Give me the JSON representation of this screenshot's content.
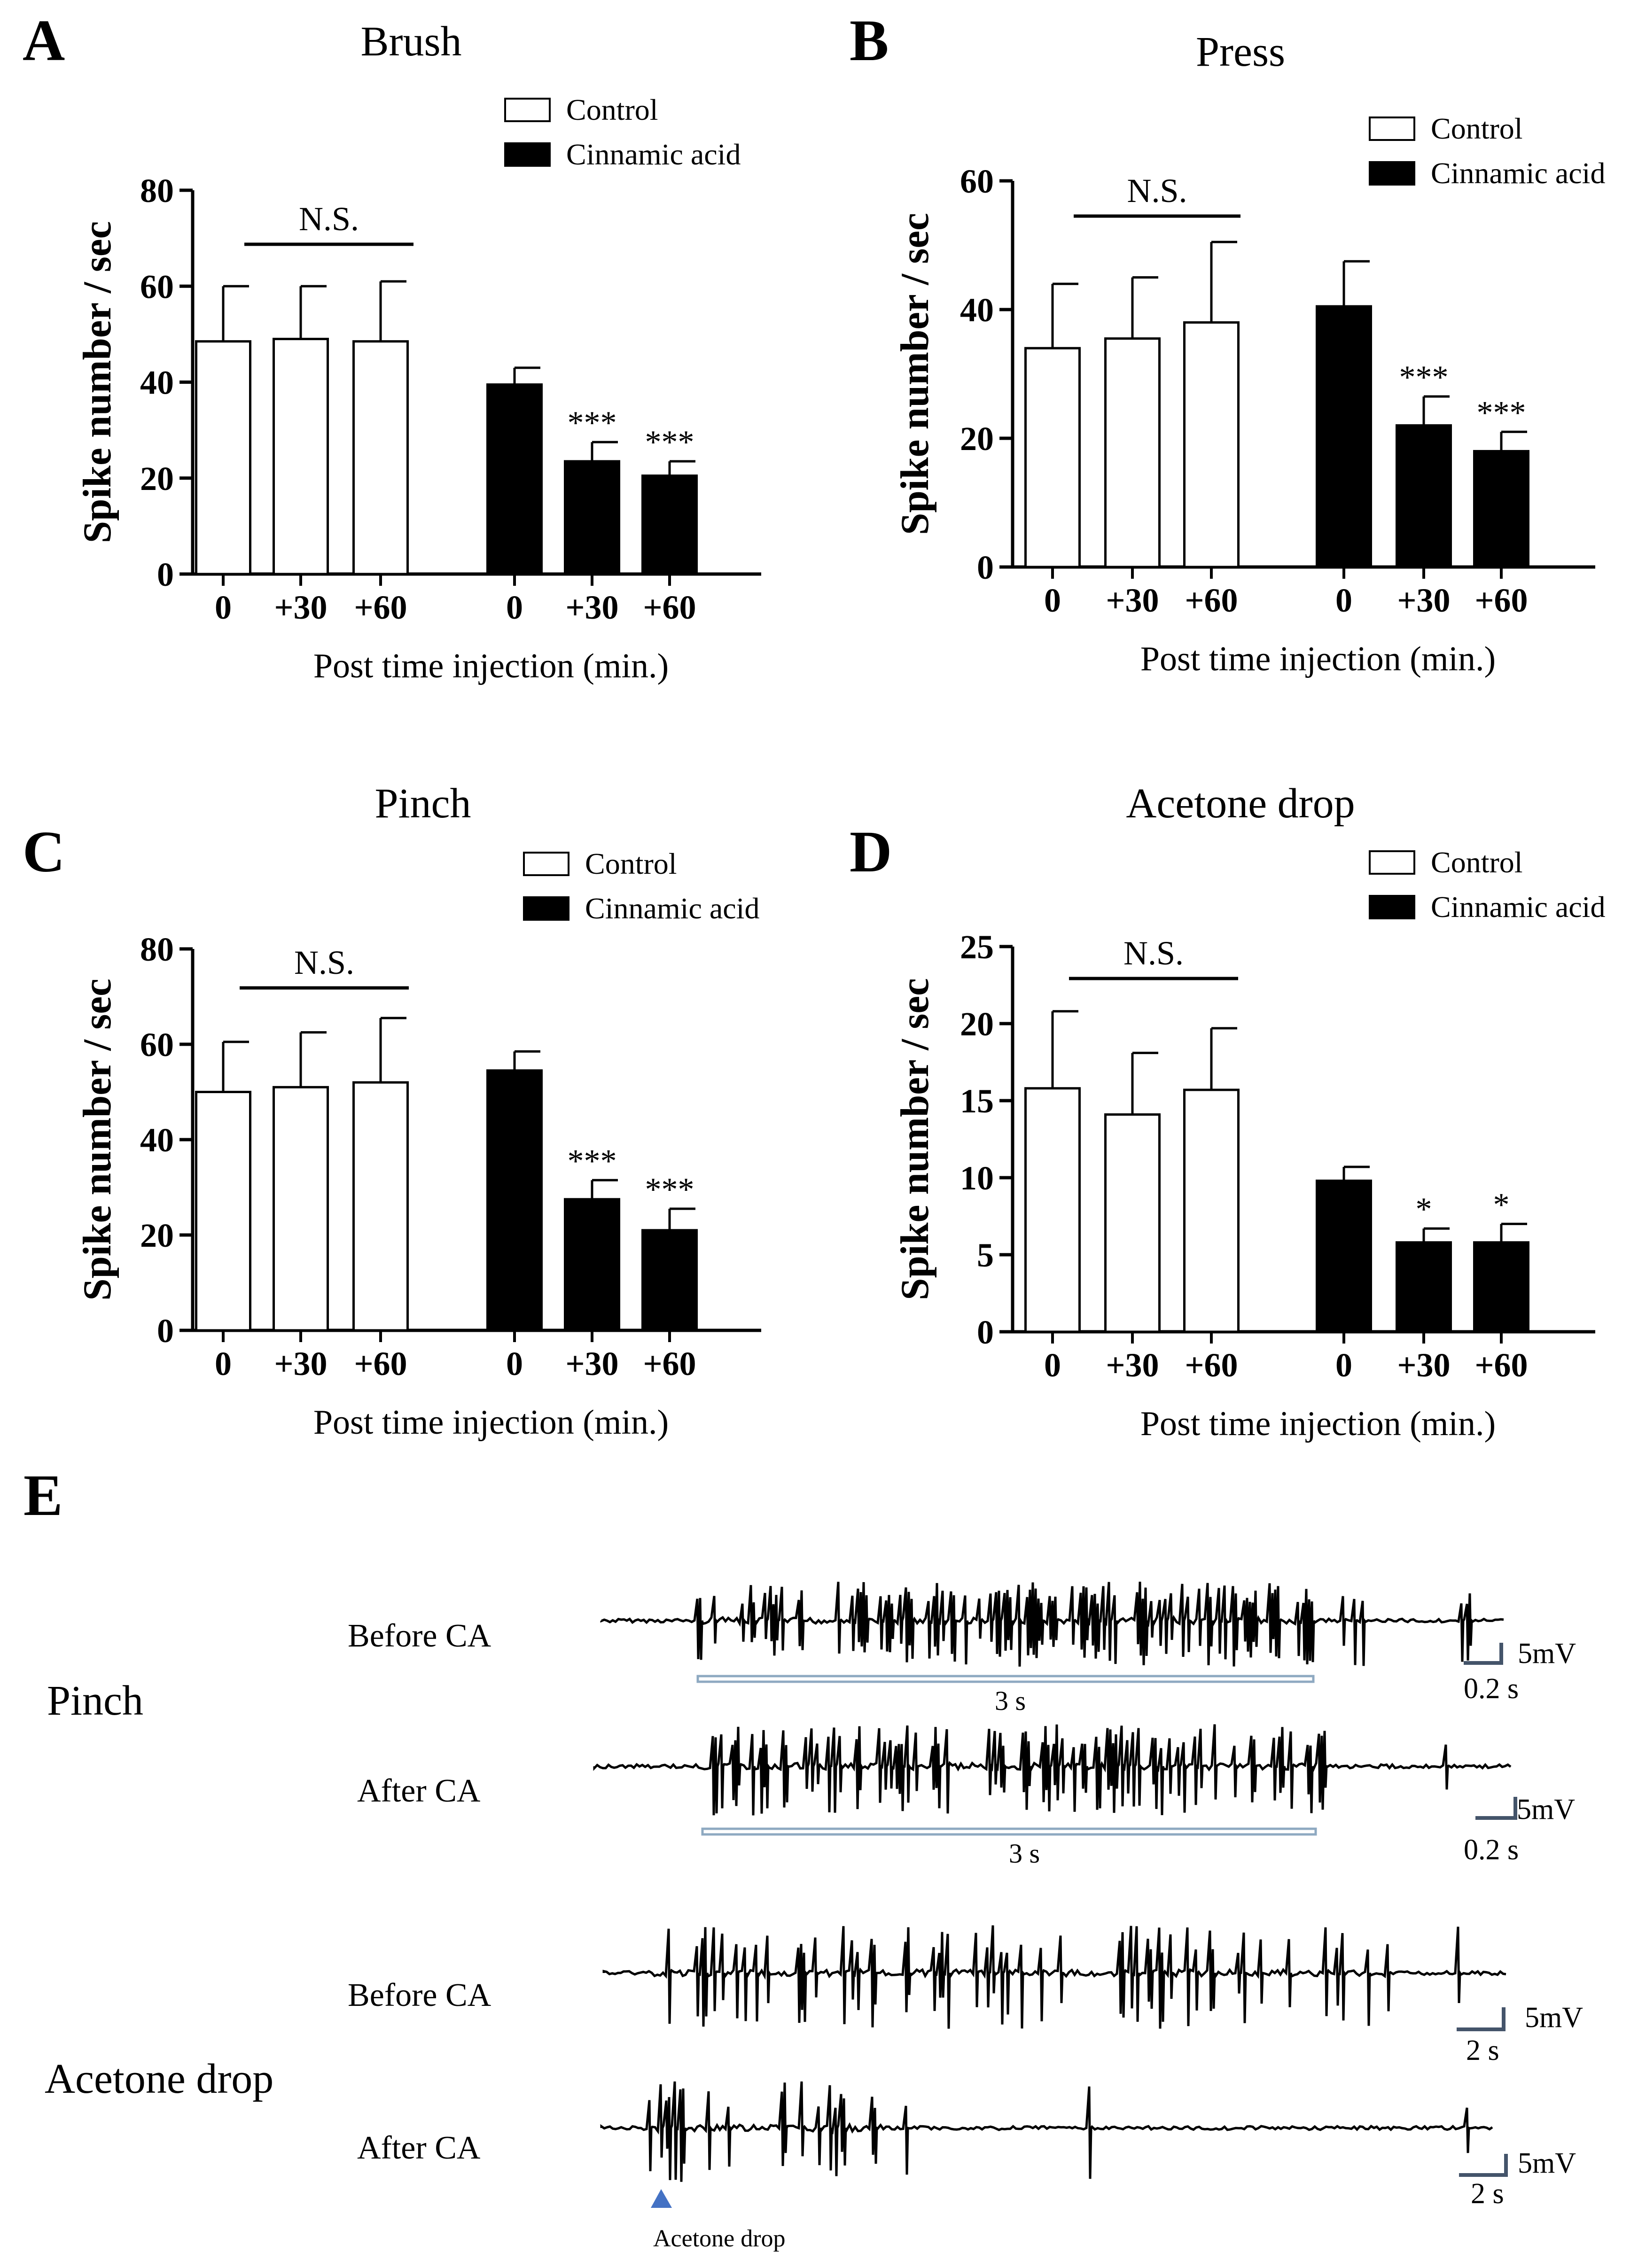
{
  "figure": {
    "panel_e_label": "E",
    "panel_e": {
      "groups": [
        {
          "label": "Pinch",
          "traces": [
            {
              "label": "Before CA",
              "stimulus_bar_label": "3 s",
              "scale_v": "5mV",
              "scale_t": "0.2 s"
            },
            {
              "label": "After CA",
              "stimulus_bar_label": "3 s",
              "scale_v": "5mV",
              "scale_t": "0.2 s"
            }
          ]
        },
        {
          "label": "Acetone drop",
          "traces": [
            {
              "label": "Before CA",
              "scale_v": "5mV",
              "scale_t": "2 s"
            },
            {
              "label": "After CA",
              "scale_v": "5mV",
              "scale_t": "2 s",
              "marker_label": "Acetone drop"
            }
          ]
        }
      ]
    }
  },
  "colors": {
    "control_fill": "#ffffff",
    "ca_fill": "#000000",
    "scale_bar": "#44546a",
    "stim_bar": "#8ea9c1",
    "marker": "#4472c4"
  },
  "chart_data": [
    {
      "panel": "A",
      "type": "bar",
      "title": "Brush",
      "ylabel": "Spike number / sec",
      "xlabel": "Post time injection (min.)",
      "ylim": [
        0,
        80
      ],
      "yticks": [
        0,
        20,
        40,
        60,
        80
      ],
      "categories": [
        "0",
        "+30",
        "+60"
      ],
      "legend": [
        "Control",
        "Cinnamic acid"
      ],
      "ns_label": "N.S.",
      "series": [
        {
          "name": "Control",
          "values": [
            48.5,
            49,
            48.5
          ],
          "errors": [
            11.5,
            11,
            12.5
          ],
          "sig": [
            "",
            "",
            ""
          ]
        },
        {
          "name": "Cinnamic acid",
          "values": [
            39.5,
            23.5,
            20.5
          ],
          "errors": [
            3.5,
            4,
            3
          ],
          "sig": [
            "",
            "***",
            "***"
          ]
        }
      ]
    },
    {
      "panel": "B",
      "type": "bar",
      "title": "Press",
      "ylabel": "Spike number / sec",
      "xlabel": "Post time injection (min.)",
      "ylim": [
        0,
        60
      ],
      "yticks": [
        0,
        20,
        40,
        60
      ],
      "categories": [
        "0",
        "+30",
        "+60"
      ],
      "legend": [
        "Control",
        "Cinnamic acid"
      ],
      "ns_label": "N.S.",
      "series": [
        {
          "name": "Control",
          "values": [
            34,
            35.5,
            38
          ],
          "errors": [
            10,
            9.5,
            12.5
          ],
          "sig": [
            "",
            "",
            ""
          ]
        },
        {
          "name": "Cinnamic acid",
          "values": [
            40.5,
            22,
            18
          ],
          "errors": [
            7,
            4.5,
            3
          ],
          "sig": [
            "",
            "***",
            "***"
          ]
        }
      ]
    },
    {
      "panel": "C",
      "type": "bar",
      "title": "Pinch",
      "ylabel": "Spike number / sec",
      "xlabel": "Post time injection (min.)",
      "ylim": [
        0,
        80
      ],
      "yticks": [
        0,
        20,
        40,
        60,
        80
      ],
      "categories": [
        "0",
        "+30",
        "+60"
      ],
      "legend": [
        "Control",
        "Cinnamic acid"
      ],
      "ns_label": "N.S.",
      "series": [
        {
          "name": "Control",
          "values": [
            50,
            51,
            52
          ],
          "errors": [
            10.5,
            11.5,
            13.5
          ],
          "sig": [
            "",
            "",
            ""
          ]
        },
        {
          "name": "Cinnamic acid",
          "values": [
            54.5,
            27.5,
            21
          ],
          "errors": [
            4,
            4,
            4.5
          ],
          "sig": [
            "",
            "***",
            "***"
          ]
        }
      ]
    },
    {
      "panel": "D",
      "type": "bar",
      "title": "Acetone drop",
      "ylabel": "Spike number / sec",
      "xlabel": "Post time injection (min.)",
      "ylim": [
        0,
        25
      ],
      "yticks": [
        0,
        5,
        10,
        15,
        20,
        25
      ],
      "categories": [
        "0",
        "+30",
        "+60"
      ],
      "legend": [
        "Control",
        "Cinnamic acid"
      ],
      "ns_label": "N.S.",
      "series": [
        {
          "name": "Control",
          "values": [
            15.8,
            14.1,
            15.7
          ],
          "errors": [
            5,
            4,
            4
          ],
          "sig": [
            "",
            "",
            ""
          ]
        },
        {
          "name": "Cinnamic acid",
          "values": [
            9.8,
            5.8,
            5.8
          ],
          "errors": [
            0.9,
            0.9,
            1.2
          ],
          "sig": [
            "",
            "*",
            "*"
          ]
        }
      ]
    }
  ]
}
